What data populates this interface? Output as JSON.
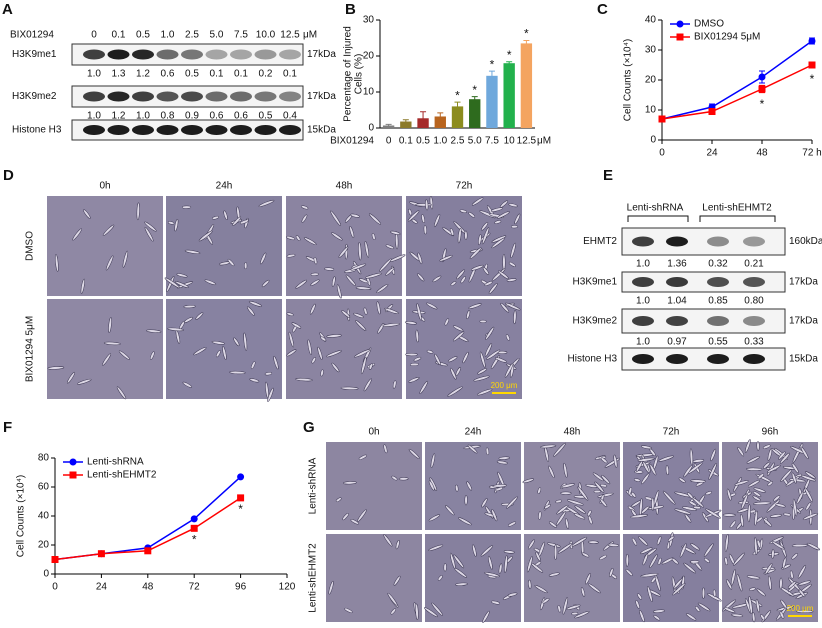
{
  "panel_labels": [
    "A",
    "B",
    "C",
    "D",
    "E",
    "F",
    "G"
  ],
  "blot_a": {
    "treatment": "BIX01294",
    "doses": [
      "0",
      "0.1",
      "0.5",
      "1.0",
      "2.5",
      "5.0",
      "7.5",
      "10.0",
      "12.5"
    ],
    "unit": "μM",
    "rows": [
      {
        "name": "H3K9me1",
        "size": "17kDa",
        "quant": [
          "1.0",
          "1.3",
          "1.2",
          "0.6",
          "0.5",
          "0.1",
          "0.1",
          "0.2",
          "0.1"
        ]
      },
      {
        "name": "H3K9me2",
        "size": "17kDa",
        "quant": [
          "1.0",
          "1.2",
          "1.0",
          "0.8",
          "0.9",
          "0.6",
          "0.6",
          "0.5",
          "0.4"
        ]
      },
      {
        "name": "Histone H3",
        "size": "15kDa"
      }
    ]
  },
  "chart_data": [
    {
      "type": "bar",
      "ylabel": [
        "Percentage of Injured",
        "Cells (%)"
      ],
      "xlabel": "BIX01294",
      "unit": "μM",
      "categories": [
        "0",
        "0.1",
        "0.5",
        "1.0",
        "2.5",
        "5.0",
        "7.5",
        "10",
        "12.5"
      ],
      "values": [
        0.7,
        1.8,
        2.7,
        3.2,
        6.0,
        8.0,
        14.5,
        18.0,
        23.5
      ],
      "errors": [
        0.3,
        0.5,
        1.8,
        1.0,
        1.2,
        0.7,
        1.3,
        0.4,
        0.8
      ],
      "colors": [
        "#7f7f7f",
        "#8c7a2a",
        "#a52a2a",
        "#b8641e",
        "#8c8c1e",
        "#2e6b1e",
        "#6fa8dc",
        "#22b14c",
        "#f4a460"
      ],
      "ylim": [
        0,
        30
      ],
      "yticks": [
        0,
        10,
        20,
        30
      ],
      "annotations": [
        {
          "text": "*",
          "category": "2.5"
        },
        {
          "text": "*",
          "category": "5.0"
        },
        {
          "text": "*",
          "category": "7.5"
        },
        {
          "text": "*",
          "category": "10"
        },
        {
          "text": "*",
          "category": "12.5"
        }
      ]
    },
    {
      "type": "line",
      "ylabel": "Cell Counts (×10⁴)",
      "x": [
        0,
        24,
        48,
        72
      ],
      "xlim": [
        0,
        72
      ],
      "xticks": [
        0,
        24,
        48,
        {
          "value": 72,
          "label": "72 h"
        }
      ],
      "ylim": [
        0,
        40
      ],
      "yticks": [
        0,
        10,
        20,
        30,
        40
      ],
      "legend": "upper left",
      "series": [
        {
          "name": "DMSO",
          "color": "#0000ff",
          "marker": "circle",
          "values": [
            7,
            11,
            21,
            33
          ],
          "errors": [
            0.5,
            1,
            2,
            1
          ]
        },
        {
          "name": "BIX01294 5μM",
          "color": "#ff0000",
          "marker": "square",
          "values": [
            7,
            9.5,
            17,
            25
          ],
          "errors": [
            0.5,
            0.8,
            1.2,
            1
          ]
        }
      ],
      "annotations": [
        {
          "text": "*",
          "x": 48
        },
        {
          "text": "*",
          "x": 72
        }
      ]
    },
    {
      "type": "line",
      "ylabel": "Cell Counts (×10⁴)",
      "x": [
        0,
        24,
        48,
        72,
        96
      ],
      "xlim": [
        0,
        120
      ],
      "xticks": [
        0,
        24,
        48,
        72,
        96,
        120
      ],
      "ylim": [
        0,
        80
      ],
      "yticks": [
        0,
        20,
        40,
        60,
        80
      ],
      "legend": "upper left",
      "series": [
        {
          "name": "Lenti-shRNA",
          "color": "#0000ff",
          "marker": "circle",
          "values": [
            10,
            14,
            18,
            38,
            67
          ]
        },
        {
          "name": "Lenti-shEHMT2",
          "color": "#ff0000",
          "marker": "square",
          "values": [
            10,
            14,
            16,
            31.5,
            52.5
          ]
        }
      ],
      "annotations": [
        {
          "text": "*",
          "x": 72
        },
        {
          "text": "*",
          "x": 96
        }
      ]
    }
  ],
  "micrographs_d": {
    "columns": [
      "0h",
      "24h",
      "48h",
      "72h"
    ],
    "rows": [
      "DMSO",
      "BIX01294 5μM"
    ],
    "scale_bar": "200 μm"
  },
  "blot_e": {
    "groups": [
      "Lenti-shRNA",
      "Lenti-shEHMT2"
    ],
    "rows": [
      {
        "name": "EHMT2",
        "size": "160kDa",
        "quant": [
          "1.0",
          "1.36",
          "0.32",
          "0.21"
        ]
      },
      {
        "name": "H3K9me1",
        "size": "17kDa",
        "quant": [
          "1.0",
          "1.04",
          "0.85",
          "0.80"
        ]
      },
      {
        "name": "H3K9me2",
        "size": "17kDa",
        "quant": [
          "1.0",
          "0.97",
          "0.55",
          "0.33"
        ]
      },
      {
        "name": "Histone H3",
        "size": "15kDa"
      }
    ]
  },
  "micrographs_g": {
    "columns": [
      "0h",
      "24h",
      "48h",
      "72h",
      "96h"
    ],
    "rows": [
      "Lenti-shRNA",
      "Lenti-shEHMT2"
    ],
    "scale_bar": "200 μm"
  }
}
